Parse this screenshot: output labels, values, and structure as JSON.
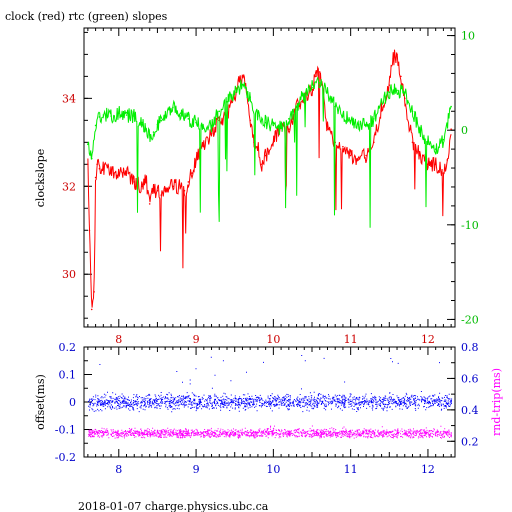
{
  "title": "clock (red) rtc (green) slopes",
  "footer": "2018-01-07  charge.physics.ubc.ca",
  "colors": {
    "clock": "#ff0000",
    "rtc": "#00ee00",
    "offset": "#0000ff",
    "rtt": "#ff00ff",
    "axis": "#000000",
    "lower_ticks": "#0000cc",
    "left_ticks_top": "#cc0000",
    "right_ticks_top": "#00bb00"
  },
  "chart_data": [
    {
      "type": "line",
      "title": "clock (red) rtc (green) slopes",
      "ylabel": "clockslope",
      "y2label": "",
      "xlim": [
        7.55,
        12.35
      ],
      "ylim": [
        28.8,
        35.6
      ],
      "y2lim": [
        -20.8,
        10.8
      ],
      "xticks": [
        "8",
        "9",
        "10",
        "11",
        "12"
      ],
      "yticks": [
        "30",
        "32",
        "34"
      ],
      "y2ticks": [
        "-20",
        "-10",
        "0",
        "10"
      ],
      "grid": false,
      "series": [
        {
          "name": "clock",
          "axis": "left",
          "x": [
            7.6,
            7.62,
            7.65,
            7.68,
            7.7,
            7.72,
            7.75,
            7.8,
            7.9,
            8.0,
            8.1,
            8.2,
            8.3,
            8.35,
            8.4,
            8.45,
            8.5,
            8.55,
            8.6,
            8.7,
            8.8,
            8.85,
            8.9,
            8.95,
            9.0,
            9.1,
            9.2,
            9.3,
            9.4,
            9.5,
            9.55,
            9.6,
            9.65,
            9.7,
            9.75,
            9.8,
            9.85,
            9.9,
            10.0,
            10.1,
            10.2,
            10.3,
            10.4,
            10.5,
            10.55,
            10.6,
            10.65,
            10.7,
            10.8,
            10.9,
            11.0,
            11.1,
            11.2,
            11.3,
            11.4,
            11.5,
            11.55,
            11.6,
            11.65,
            11.7,
            11.8,
            11.9,
            12.0,
            12.1,
            12.2,
            12.25,
            12.3
          ],
          "values": [
            32.5,
            31.0,
            29.2,
            29.6,
            32.2,
            32.5,
            32.4,
            32.4,
            32.3,
            32.3,
            32.3,
            32.1,
            32.0,
            32.2,
            31.6,
            31.9,
            31.9,
            31.8,
            31.9,
            32.0,
            32.0,
            31.9,
            32.1,
            32.3,
            32.6,
            32.9,
            33.2,
            33.5,
            33.6,
            34.0,
            34.4,
            34.5,
            34.2,
            33.5,
            33.0,
            32.9,
            32.5,
            32.7,
            33.0,
            33.4,
            33.3,
            33.8,
            34.0,
            34.2,
            34.5,
            34.6,
            34.0,
            33.3,
            33.0,
            32.9,
            32.7,
            32.6,
            32.7,
            33.0,
            33.8,
            34.3,
            34.9,
            35.0,
            34.5,
            34.0,
            33.0,
            32.7,
            32.5,
            32.5,
            32.3,
            32.6,
            33.3
          ]
        },
        {
          "name": "rtc",
          "axis": "right",
          "x": [
            7.6,
            7.65,
            7.7,
            7.75,
            7.8,
            7.9,
            8.0,
            8.1,
            8.2,
            8.3,
            8.35,
            8.4,
            8.45,
            8.5,
            8.55,
            8.6,
            8.7,
            8.8,
            8.9,
            9.0,
            9.1,
            9.2,
            9.3,
            9.4,
            9.5,
            9.6,
            9.7,
            9.8,
            9.9,
            10.0,
            10.1,
            10.2,
            10.3,
            10.4,
            10.5,
            10.6,
            10.7,
            10.8,
            10.9,
            11.0,
            11.1,
            11.2,
            11.3,
            11.4,
            11.5,
            11.6,
            11.7,
            11.8,
            11.9,
            12.0,
            12.1,
            12.2,
            12.3
          ],
          "values": [
            -1.5,
            -3.0,
            0.5,
            1.4,
            1.6,
            1.5,
            1.8,
            1.6,
            1.5,
            0.8,
            0.2,
            -0.5,
            -0.2,
            0.6,
            1.0,
            1.6,
            2.4,
            1.8,
            1.2,
            0.8,
            0.2,
            0.5,
            2.0,
            3.0,
            4.0,
            4.8,
            3.5,
            1.5,
            0.8,
            0.5,
            0.2,
            1.2,
            2.5,
            3.8,
            4.5,
            5.0,
            4.0,
            2.5,
            1.5,
            1.0,
            0.6,
            0.5,
            1.2,
            3.0,
            4.0,
            4.2,
            4.0,
            2.0,
            0.0,
            -1.2,
            -2.0,
            -1.0,
            2.5
          ]
        }
      ]
    },
    {
      "type": "scatter",
      "ylabel": "offset(ms)",
      "y2label": "rnd-trip(ms)",
      "xlim": [
        7.55,
        12.35
      ],
      "ylim": [
        -0.2,
        0.2
      ],
      "y2lim": [
        0.1,
        0.8
      ],
      "xticks": [
        "8",
        "9",
        "10",
        "11",
        "12"
      ],
      "yticks": [
        "-0.2",
        "-0.1",
        "0",
        "0.1",
        "0.2"
      ],
      "y2ticks": [
        "0.2",
        "0.4",
        "0.6",
        "0.8"
      ],
      "grid": false,
      "series": [
        {
          "name": "offset",
          "axis": "left",
          "x_range": [
            7.6,
            12.3
          ],
          "center": 0.0,
          "spread": 0.03,
          "outlier_max": 0.17
        },
        {
          "name": "rnd-trip",
          "axis": "right",
          "x_range": [
            7.6,
            12.3
          ],
          "center": 0.25,
          "spread": 0.03,
          "outlier_max": 0.3
        }
      ]
    }
  ]
}
